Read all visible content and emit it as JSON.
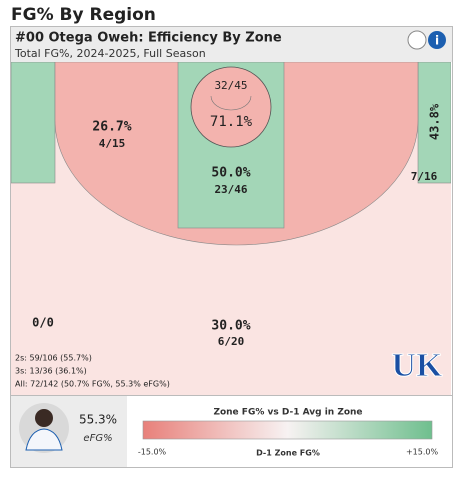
{
  "page_title": "FG% By Region",
  "header": {
    "title": "#00 Otega Oweh: Efficiency By Zone",
    "subtitle": "Total FG%, 2024-2025, Full Season"
  },
  "zones": [
    {
      "pct": "71.1%",
      "made": "32/45"
    },
    {
      "pct": "50.0%",
      "made": "23/46"
    },
    {
      "pct": "26.7%",
      "made": "4/15"
    },
    {
      "pct": "43.8%",
      "made": "7/16"
    },
    {
      "made": "0/0"
    },
    {
      "pct": "30.0%",
      "made": "6/20"
    }
  ],
  "stats": [
    "2s: 59/106 (55.7%)",
    "3s: 13/36 (36.1%)",
    "All: 72/142 (50.7% FG%, 55.3% eFG%)"
  ],
  "logo": "UK",
  "player": {
    "value": "55.3%",
    "label": "eFG%"
  },
  "legend": {
    "title": "Zone FG% vs D-1 Avg in Zone",
    "min": "-15.0%",
    "axis": "D-1 Zone FG%",
    "max": "+15.0%"
  }
}
